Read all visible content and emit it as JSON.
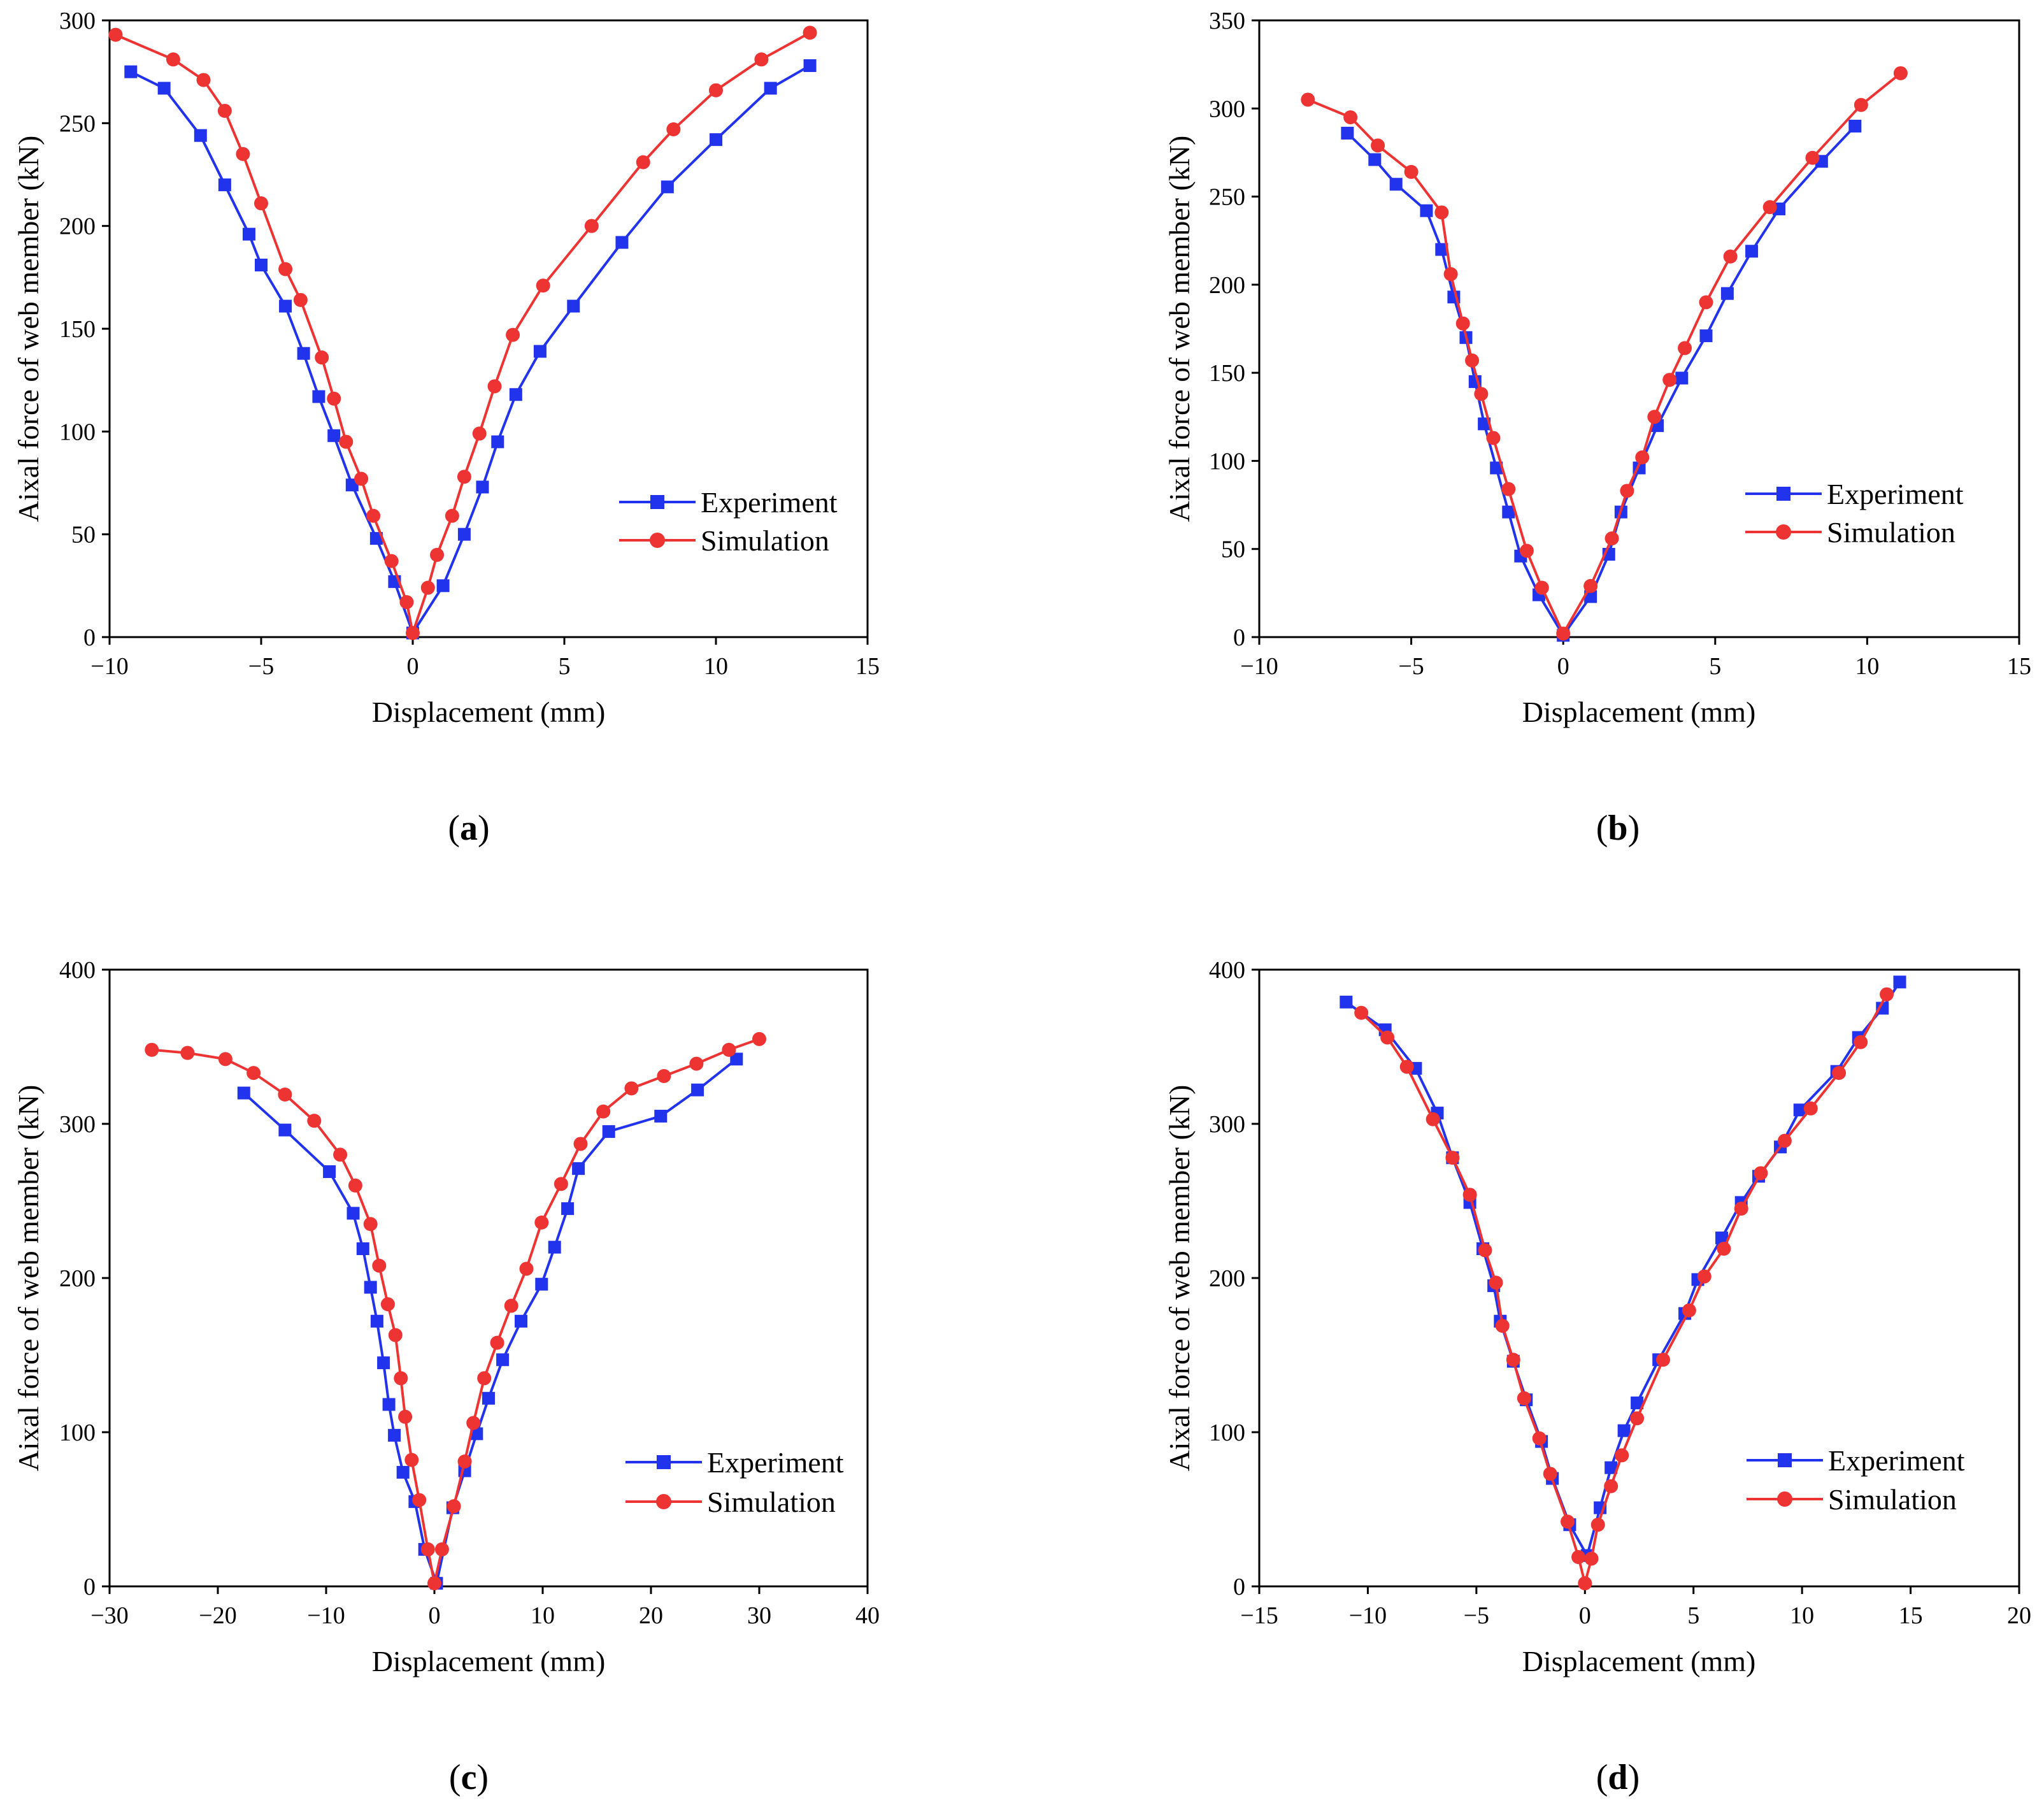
{
  "chart_data": [
    {
      "type": "line",
      "caption": "a",
      "xlabel": "Displacement (mm)",
      "ylabel": "Aixal force of web member (kN)",
      "xlim": [
        -10,
        15
      ],
      "ylim": [
        0,
        300
      ],
      "xticks": [
        -10,
        -5,
        0,
        5,
        10,
        15
      ],
      "yticks": [
        0,
        50,
        100,
        150,
        200,
        250,
        300
      ],
      "xtick_labels": [
        "−10",
        "−5",
        "0",
        "5",
        "10",
        "15"
      ],
      "ytick_labels": [
        "0",
        "50",
        "100",
        "150",
        "200",
        "250",
        "300"
      ],
      "legend": "right",
      "series": [
        {
          "name": "Experiment",
          "color": "#2233ee",
          "marker": "square",
          "x": [
            -9.3,
            -8.2,
            -7.0,
            -6.2,
            -5.4,
            -5.0,
            -4.2,
            -3.6,
            -3.1,
            -2.6,
            -2.0,
            -1.2,
            -0.6,
            0.0,
            1.0,
            1.7,
            2.3,
            2.8,
            3.4,
            4.2,
            5.3,
            6.9,
            8.4,
            10.0,
            11.8,
            13.1
          ],
          "y": [
            275,
            267,
            244,
            220,
            196,
            181,
            161,
            138,
            117,
            98,
            74,
            48,
            27,
            2,
            25,
            50,
            73,
            95,
            118,
            139,
            161,
            192,
            219,
            242,
            267,
            278
          ]
        },
        {
          "name": "Simulation",
          "color": "#ee3333",
          "marker": "circle",
          "x": [
            -9.8,
            -7.9,
            -6.9,
            -6.2,
            -5.6,
            -5.0,
            -4.2,
            -3.7,
            -3.0,
            -2.6,
            -2.2,
            -1.7,
            -1.3,
            -0.7,
            -0.2,
            0.0,
            0.5,
            0.8,
            1.3,
            1.7,
            2.2,
            2.7,
            3.3,
            4.3,
            5.9,
            7.6,
            8.6,
            10.0,
            11.5,
            13.1
          ],
          "y": [
            293,
            281,
            271,
            256,
            235,
            211,
            179,
            164,
            136,
            116,
            95,
            77,
            59,
            37,
            17,
            2,
            24,
            40,
            59,
            78,
            99,
            122,
            147,
            171,
            200,
            231,
            247,
            266,
            281,
            294
          ]
        }
      ]
    },
    {
      "type": "line",
      "caption": "b",
      "xlabel": "Displacement (mm)",
      "ylabel": "Aixal force of web member (kN)",
      "xlim": [
        -10,
        15
      ],
      "ylim": [
        0,
        350
      ],
      "xticks": [
        -10,
        -5,
        0,
        5,
        10,
        15
      ],
      "yticks": [
        0,
        50,
        100,
        150,
        200,
        250,
        300,
        350
      ],
      "xtick_labels": [
        "−10",
        "−5",
        "0",
        "5",
        "10",
        "15"
      ],
      "ytick_labels": [
        "0",
        "50",
        "100",
        "150",
        "200",
        "250",
        "300",
        "350"
      ],
      "legend": "right",
      "series": [
        {
          "name": "Experiment",
          "color": "#2233ee",
          "marker": "square",
          "x": [
            -7.1,
            -6.2,
            -5.5,
            -4.5,
            -4.0,
            -3.6,
            -3.2,
            -2.9,
            -2.6,
            -2.2,
            -1.8,
            -1.4,
            -0.8,
            0.0,
            0.9,
            1.5,
            1.9,
            2.5,
            3.1,
            3.9,
            4.7,
            5.4,
            6.2,
            7.1,
            8.5,
            9.6
          ],
          "y": [
            286,
            271,
            257,
            242,
            220,
            193,
            170,
            145,
            121,
            96,
            71,
            46,
            24,
            1,
            23,
            47,
            71,
            96,
            120,
            147,
            171,
            195,
            219,
            243,
            270,
            290
          ]
        },
        {
          "name": "Simulation",
          "color": "#ee3333",
          "marker": "circle",
          "x": [
            -8.4,
            -7.0,
            -6.1,
            -5.0,
            -4.0,
            -3.7,
            -3.3,
            -3.0,
            -2.7,
            -2.3,
            -1.8,
            -1.2,
            -0.7,
            0.0,
            0.9,
            1.6,
            2.1,
            2.6,
            3.0,
            3.5,
            4.0,
            4.7,
            5.5,
            6.8,
            8.2,
            9.8,
            11.1
          ],
          "y": [
            305,
            295,
            279,
            264,
            241,
            206,
            178,
            157,
            138,
            113,
            84,
            49,
            28,
            2,
            29,
            56,
            83,
            102,
            125,
            146,
            164,
            190,
            216,
            244,
            272,
            302,
            320
          ]
        }
      ]
    },
    {
      "type": "line",
      "caption": "c",
      "xlabel": "Displacement (mm)",
      "ylabel": "Aixal force of web member (kN)",
      "xlim": [
        -30,
        40
      ],
      "ylim": [
        0,
        400
      ],
      "xticks": [
        -30,
        -20,
        -10,
        0,
        10,
        20,
        30,
        40
      ],
      "yticks": [
        0,
        100,
        200,
        300,
        400
      ],
      "xtick_labels": [
        "−30",
        "−20",
        "−10",
        "0",
        "10",
        "20",
        "30",
        "40"
      ],
      "ytick_labels": [
        "0",
        "100",
        "200",
        "300",
        "400"
      ],
      "legend": "right",
      "series": [
        {
          "name": "Experiment",
          "color": "#2233ee",
          "marker": "square",
          "x": [
            -17.6,
            -13.8,
            -9.7,
            -7.5,
            -6.6,
            -5.9,
            -5.3,
            -4.7,
            -4.2,
            -3.7,
            -2.9,
            -1.8,
            -0.9,
            0.2,
            1.7,
            2.8,
            3.9,
            5.0,
            6.3,
            8.0,
            9.9,
            11.1,
            12.3,
            13.3,
            16.1,
            20.9,
            24.3,
            27.9
          ],
          "y": [
            320,
            296,
            269,
            242,
            219,
            194,
            172,
            145,
            118,
            98,
            74,
            55,
            24,
            2,
            51,
            75,
            99,
            122,
            147,
            172,
            196,
            220,
            245,
            271,
            295,
            305,
            322,
            342
          ]
        },
        {
          "name": "Simulation",
          "color": "#ee3333",
          "marker": "circle",
          "x": [
            -26.1,
            -22.8,
            -19.3,
            -16.7,
            -13.8,
            -11.1,
            -8.7,
            -7.3,
            -5.9,
            -5.1,
            -4.3,
            -3.6,
            -3.1,
            -2.7,
            -2.1,
            -1.4,
            -0.6,
            0.0,
            0.7,
            1.8,
            2.8,
            3.6,
            4.6,
            5.8,
            7.1,
            8.5,
            9.9,
            11.7,
            13.5,
            15.6,
            18.2,
            21.2,
            24.2,
            27.2,
            30.0
          ],
          "y": [
            348,
            346,
            342,
            333,
            319,
            302,
            280,
            260,
            235,
            208,
            183,
            163,
            135,
            110,
            82,
            56,
            24,
            2,
            24,
            52,
            81,
            106,
            135,
            158,
            182,
            206,
            236,
            261,
            287,
            308,
            323,
            331,
            339,
            348,
            355
          ]
        }
      ]
    },
    {
      "type": "line",
      "caption": "d",
      "xlabel": "Displacement (mm)",
      "ylabel": "Aixal force of web member (kN)",
      "xlim": [
        -15,
        20
      ],
      "ylim": [
        0,
        400
      ],
      "xticks": [
        -15,
        -10,
        -5,
        0,
        5,
        10,
        15,
        20
      ],
      "yticks": [
        0,
        100,
        200,
        300,
        400
      ],
      "xtick_labels": [
        "−15",
        "−10",
        "−5",
        "0",
        "5",
        "10",
        "15",
        "20"
      ],
      "ytick_labels": [
        "0",
        "100",
        "200",
        "300",
        "400"
      ],
      "legend": "right",
      "series": [
        {
          "name": "Experiment",
          "color": "#2233ee",
          "marker": "square",
          "x": [
            -11.0,
            -9.2,
            -7.8,
            -6.8,
            -6.1,
            -5.3,
            -4.7,
            -4.2,
            -3.9,
            -3.3,
            -2.7,
            -2.0,
            -1.5,
            -0.7,
            0.1,
            0.7,
            1.2,
            1.8,
            2.4,
            3.4,
            4.6,
            5.2,
            6.3,
            7.2,
            8.0,
            9.0,
            9.9,
            11.6,
            12.6,
            13.7,
            14.5
          ],
          "y": [
            379,
            361,
            336,
            307,
            278,
            249,
            219,
            195,
            172,
            146,
            121,
            94,
            70,
            40,
            20,
            51,
            77,
            101,
            119,
            147,
            177,
            199,
            226,
            249,
            266,
            285,
            309,
            334,
            356,
            375,
            392
          ]
        },
        {
          "name": "Simulation",
          "color": "#ee3333",
          "marker": "circle",
          "x": [
            -10.3,
            -9.1,
            -8.2,
            -7.0,
            -6.1,
            -5.3,
            -4.6,
            -4.1,
            -3.8,
            -3.3,
            -2.8,
            -2.1,
            -1.6,
            -0.8,
            -0.3,
            0.0,
            0.3,
            0.6,
            1.2,
            1.7,
            2.4,
            3.6,
            4.8,
            5.5,
            6.4,
            7.2,
            8.1,
            9.2,
            10.4,
            11.7,
            12.7,
            13.9
          ],
          "y": [
            372,
            356,
            337,
            303,
            278,
            254,
            218,
            197,
            169,
            147,
            122,
            96,
            73,
            42,
            19,
            2,
            18,
            40,
            65,
            85,
            109,
            147,
            179,
            201,
            219,
            245,
            268,
            289,
            310,
            333,
            353,
            384
          ]
        }
      ]
    }
  ]
}
